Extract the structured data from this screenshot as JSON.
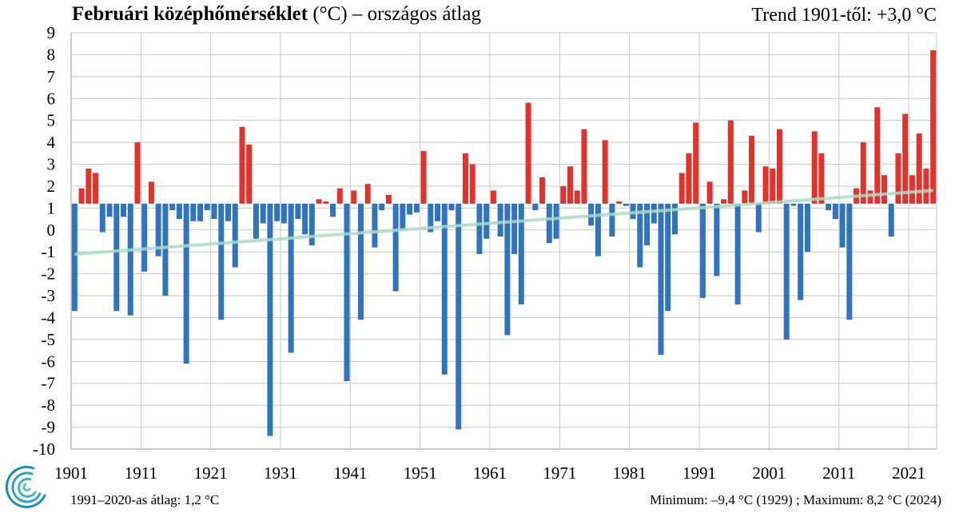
{
  "title": {
    "bold": "Februári középhőmérséklet",
    "rest": "(°C) – országos átlag"
  },
  "trend_label": "Trend 1901-től: +3,0 °C",
  "footer": {
    "avg_label": "1991–2020-as átlag:  1,2 °C",
    "minmax_label": "Minimum:  –9,4 °C (1929)  ; Maximum:  8,2 °C (2024)"
  },
  "colors": {
    "above": "#e5312a",
    "below": "#2e74c0",
    "trend": "#a9dcc4",
    "grid": "#c8c8c8"
  },
  "logo": {
    "icon": "met-service-logo-icon"
  },
  "chart_data": {
    "type": "bar",
    "title": "Februári középhőmérséklet (°C) – országos átlag",
    "baseline": 1.2,
    "ylim": [
      -10,
      9
    ],
    "yticks": [
      9,
      8,
      7,
      6,
      5,
      4,
      3,
      2,
      1,
      0,
      -1,
      -2,
      -3,
      -4,
      -5,
      -6,
      -7,
      -8,
      -9,
      -10
    ],
    "xticks": [
      1901,
      1911,
      1921,
      1931,
      1941,
      1951,
      1961,
      1971,
      1981,
      1991,
      2001,
      2011,
      2021
    ],
    "xlim": [
      1900.5,
      2024.5
    ],
    "trend": {
      "start_year": 1901,
      "start_value": -1.1,
      "end_year": 2024,
      "end_value": 1.8,
      "label": "+3,0 °C"
    },
    "years": [
      1901,
      1902,
      1903,
      1904,
      1905,
      1906,
      1907,
      1908,
      1909,
      1910,
      1911,
      1912,
      1913,
      1914,
      1915,
      1916,
      1917,
      1918,
      1919,
      1920,
      1921,
      1922,
      1923,
      1924,
      1925,
      1926,
      1927,
      1928,
      1929,
      1930,
      1931,
      1932,
      1933,
      1934,
      1935,
      1936,
      1937,
      1938,
      1939,
      1940,
      1941,
      1942,
      1943,
      1944,
      1945,
      1946,
      1947,
      1948,
      1949,
      1950,
      1951,
      1952,
      1953,
      1954,
      1955,
      1956,
      1957,
      1958,
      1959,
      1960,
      1961,
      1962,
      1963,
      1964,
      1965,
      1966,
      1967,
      1968,
      1969,
      1970,
      1971,
      1972,
      1973,
      1974,
      1975,
      1976,
      1977,
      1978,
      1979,
      1980,
      1981,
      1982,
      1983,
      1984,
      1985,
      1986,
      1987,
      1988,
      1989,
      1990,
      1991,
      1992,
      1993,
      1994,
      1995,
      1996,
      1997,
      1998,
      1999,
      2000,
      2001,
      2002,
      2003,
      2004,
      2005,
      2006,
      2007,
      2008,
      2009,
      2010,
      2011,
      2012,
      2013,
      2014,
      2015,
      2016,
      2017,
      2018,
      2019,
      2020,
      2021,
      2022,
      2023,
      2024
    ],
    "values": [
      -3.7,
      1.9,
      2.8,
      2.6,
      -0.1,
      0.6,
      -3.7,
      0.6,
      -3.9,
      4.0,
      -1.9,
      2.2,
      -1.2,
      -3.0,
      0.9,
      0.5,
      -6.1,
      0.4,
      0.4,
      0.9,
      0.5,
      -4.1,
      0.4,
      -1.7,
      4.7,
      3.9,
      -0.4,
      0.3,
      -9.4,
      0.4,
      0.3,
      -5.6,
      0.5,
      -0.2,
      -0.7,
      1.4,
      1.3,
      0.6,
      1.9,
      -6.9,
      1.8,
      -4.1,
      2.1,
      -0.8,
      0.9,
      1.6,
      -2.8,
      0.0,
      0.7,
      0.8,
      3.6,
      -0.1,
      0.4,
      -6.6,
      0.9,
      -9.1,
      3.5,
      3.0,
      -1.1,
      -0.4,
      1.8,
      -0.3,
      -4.8,
      -1.1,
      -3.4,
      5.8,
      0.9,
      2.4,
      -0.6,
      -0.4,
      2.0,
      2.9,
      1.8,
      4.6,
      0.2,
      -1.2,
      4.1,
      -0.3,
      1.3,
      1.1,
      0.5,
      -1.7,
      -0.7,
      0.3,
      -5.7,
      -3.7,
      -0.2,
      2.6,
      3.5,
      4.9,
      -3.1,
      2.2,
      -2.1,
      1.4,
      5.0,
      -3.4,
      1.8,
      4.3,
      -0.1,
      2.9,
      2.8,
      4.6,
      -5.0,
      1.1,
      -3.2,
      -1.0,
      4.5,
      3.5,
      0.9,
      0.5,
      -0.8,
      -4.1,
      1.9,
      4.0,
      1.8,
      5.6,
      2.5,
      -0.3,
      3.5,
      5.3,
      2.5,
      4.4,
      2.8,
      8.2
    ]
  }
}
